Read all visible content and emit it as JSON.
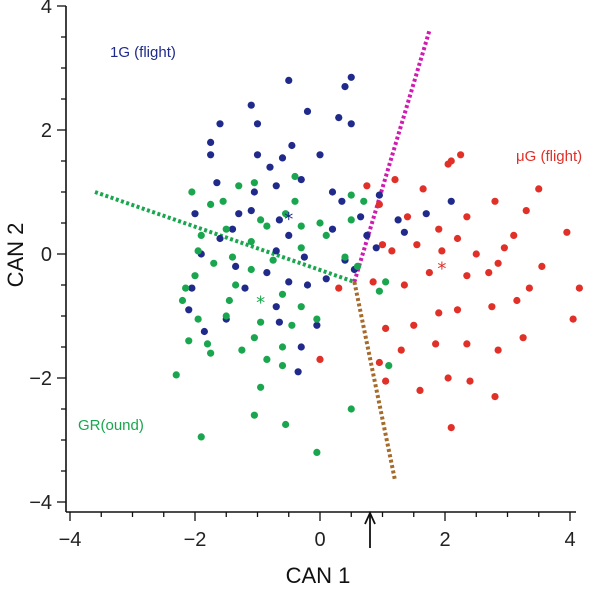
{
  "chart_data": {
    "type": "scatter",
    "xlabel": "CAN 1",
    "ylabel": "CAN 2",
    "xlim": [
      -4.2,
      4.2
    ],
    "ylim": [
      -4.0,
      4.0
    ],
    "xticks": [
      -4,
      -2,
      0,
      2,
      4
    ],
    "yticks": [
      -4,
      -2,
      0,
      2,
      4
    ],
    "xtick_labels": [
      "−4",
      "−2",
      "0",
      "2",
      "4"
    ],
    "ytick_labels": [
      "−4",
      "−2",
      "0",
      "2",
      "4"
    ],
    "grid": false,
    "series": [
      {
        "name": "1G  (flight)",
        "color": "#1f2a8a",
        "points": [
          [
            -0.5,
            2.8
          ],
          [
            0.5,
            2.85
          ],
          [
            -1.0,
            2.1
          ],
          [
            -0.2,
            2.3
          ],
          [
            0.4,
            2.7
          ],
          [
            0.5,
            2.1
          ],
          [
            -1.1,
            2.4
          ],
          [
            -1.6,
            2.1
          ],
          [
            -1.75,
            1.8
          ],
          [
            -1.75,
            1.6
          ],
          [
            -0.6,
            1.55
          ],
          [
            -0.8,
            1.4
          ],
          [
            0.0,
            1.6
          ],
          [
            -0.3,
            1.2
          ],
          [
            -1.05,
            1.0
          ],
          [
            0.35,
            0.85
          ],
          [
            -1.3,
            0.65
          ],
          [
            -1.1,
            0.7
          ],
          [
            -1.4,
            0.4
          ],
          [
            -1.6,
            0.25
          ],
          [
            -2.0,
            0.65
          ],
          [
            -0.5,
            0.3
          ],
          [
            0.2,
            0.4
          ],
          [
            -0.7,
            0.05
          ],
          [
            -1.35,
            -0.2
          ],
          [
            -0.85,
            -0.3
          ],
          [
            -0.25,
            -0.05
          ],
          [
            0.4,
            -0.1
          ],
          [
            0.65,
            0.6
          ],
          [
            0.55,
            -0.25
          ],
          [
            -1.2,
            -0.55
          ],
          [
            -2.1,
            -0.9
          ],
          [
            -0.5,
            -0.45
          ],
          [
            -0.2,
            -0.5
          ],
          [
            0.1,
            -0.4
          ],
          [
            0.75,
            0.3
          ],
          [
            -0.7,
            -0.85
          ],
          [
            -1.5,
            -1.05
          ],
          [
            -0.65,
            -1.1
          ],
          [
            -0.05,
            -1.15
          ],
          [
            -0.3,
            -1.5
          ],
          [
            -0.35,
            -1.9
          ],
          [
            -1.85,
            -1.25
          ],
          [
            -2.05,
            -0.55
          ],
          [
            0.9,
            0.1
          ],
          [
            1.25,
            0.55
          ],
          [
            1.7,
            0.65
          ],
          [
            2.1,
            0.85
          ],
          [
            0.95,
            0.95
          ],
          [
            1.35,
            0.35
          ],
          [
            -1.65,
            1.15
          ],
          [
            0.2,
            1.0
          ],
          [
            -0.65,
            0.55
          ],
          [
            -1.9,
            0.0
          ],
          [
            -1.0,
            1.6
          ],
          [
            -0.7,
            1.1
          ],
          [
            -0.45,
            1.75
          ],
          [
            0.3,
            2.2
          ]
        ],
        "centroid": [
          -0.5,
          0.6
        ]
      },
      {
        "name": "μG (flight)",
        "color": "#e03028",
        "points": [
          [
            2.1,
            1.5
          ],
          [
            2.25,
            1.6
          ],
          [
            2.05,
            1.45
          ],
          [
            1.65,
            1.05
          ],
          [
            1.2,
            1.2
          ],
          [
            1.4,
            0.6
          ],
          [
            0.75,
            1.1
          ],
          [
            0.95,
            0.8
          ],
          [
            3.5,
            1.05
          ],
          [
            3.3,
            0.7
          ],
          [
            2.8,
            0.85
          ],
          [
            2.35,
            0.6
          ],
          [
            3.1,
            0.3
          ],
          [
            2.95,
            0.1
          ],
          [
            2.5,
            0.0
          ],
          [
            2.2,
            0.25
          ],
          [
            1.9,
            0.4
          ],
          [
            1.55,
            0.15
          ],
          [
            1.15,
            0.05
          ],
          [
            1.0,
            0.15
          ],
          [
            3.95,
            0.35
          ],
          [
            3.55,
            -0.2
          ],
          [
            2.85,
            -0.15
          ],
          [
            2.7,
            -0.3
          ],
          [
            2.35,
            -0.35
          ],
          [
            1.75,
            -0.3
          ],
          [
            1.35,
            -0.5
          ],
          [
            0.85,
            -0.45
          ],
          [
            4.15,
            -0.55
          ],
          [
            4.05,
            -1.05
          ],
          [
            3.15,
            -0.75
          ],
          [
            2.75,
            -0.85
          ],
          [
            2.2,
            -0.9
          ],
          [
            1.9,
            -0.95
          ],
          [
            1.5,
            -1.15
          ],
          [
            1.05,
            -1.2
          ],
          [
            1.85,
            -1.45
          ],
          [
            1.3,
            -1.55
          ],
          [
            2.35,
            -1.45
          ],
          [
            3.25,
            -1.35
          ],
          [
            2.85,
            -1.55
          ],
          [
            0.95,
            -1.75
          ],
          [
            1.05,
            -2.05
          ],
          [
            2.05,
            -2.0
          ],
          [
            2.4,
            -2.05
          ],
          [
            1.6,
            -2.2
          ],
          [
            2.8,
            -2.3
          ],
          [
            2.1,
            -2.8
          ],
          [
            0.3,
            -0.55
          ],
          [
            0.0,
            -1.7
          ],
          [
            3.35,
            -0.55
          ],
          [
            1.95,
            0.05
          ]
        ],
        "centroid": [
          1.95,
          -0.2
        ]
      },
      {
        "name": "GR(ound)",
        "color": "#1aa64e",
        "points": [
          [
            -1.05,
            1.15
          ],
          [
            -0.4,
            1.25
          ],
          [
            -1.3,
            1.1
          ],
          [
            -2.05,
            1.0
          ],
          [
            -1.75,
            0.8
          ],
          [
            -0.4,
            0.85
          ],
          [
            -0.95,
            0.55
          ],
          [
            -0.55,
            0.65
          ],
          [
            -1.5,
            0.4
          ],
          [
            -1.9,
            0.3
          ],
          [
            -1.95,
            0.05
          ],
          [
            -1.7,
            -0.15
          ],
          [
            -0.85,
            0.45
          ],
          [
            -0.3,
            0.45
          ],
          [
            0.0,
            0.5
          ],
          [
            -1.1,
            0.2
          ],
          [
            -1.4,
            -0.05
          ],
          [
            -0.75,
            -0.1
          ],
          [
            -0.3,
            0.1
          ],
          [
            0.1,
            0.3
          ],
          [
            -1.1,
            -0.25
          ],
          [
            -1.35,
            -0.5
          ],
          [
            -2.0,
            -0.35
          ],
          [
            -2.2,
            -0.75
          ],
          [
            -1.45,
            -0.75
          ],
          [
            -0.6,
            -0.65
          ],
          [
            -0.95,
            -1.1
          ],
          [
            -1.5,
            -1.0
          ],
          [
            -1.05,
            -1.35
          ],
          [
            -1.8,
            -1.45
          ],
          [
            -1.25,
            -1.55
          ],
          [
            -0.3,
            -0.85
          ],
          [
            -0.45,
            -1.15
          ],
          [
            -0.05,
            -1.05
          ],
          [
            -0.6,
            -1.5
          ],
          [
            -1.95,
            -1.05
          ],
          [
            -2.1,
            -1.4
          ],
          [
            -1.75,
            -1.6
          ],
          [
            -2.3,
            -1.95
          ],
          [
            -0.95,
            -2.15
          ],
          [
            -1.05,
            -2.6
          ],
          [
            -0.6,
            -1.8
          ],
          [
            -1.9,
            -2.95
          ],
          [
            -0.05,
            -3.2
          ],
          [
            -0.55,
            -2.75
          ],
          [
            0.7,
            0.85
          ],
          [
            0.95,
            -0.6
          ],
          [
            0.4,
            -0.05
          ],
          [
            1.05,
            -0.45
          ],
          [
            0.6,
            -0.2
          ],
          [
            -2.15,
            -0.55
          ],
          [
            -1.55,
            0.85
          ],
          [
            0.5,
            0.95
          ],
          [
            0.5,
            0.55
          ],
          [
            -0.85,
            -1.7
          ],
          [
            0.5,
            -2.5
          ],
          [
            1.1,
            -1.8
          ]
        ],
        "centroid": [
          -0.95,
          -0.75
        ]
      }
    ],
    "boundaries": [
      {
        "name": "1G-GR",
        "color": "#1aa64e",
        "from": [
          -3.6,
          1.0
        ],
        "to": [
          0.55,
          -0.45
        ]
      },
      {
        "name": "1G-μG",
        "color": "#d01ab0",
        "from": [
          0.55,
          -0.45
        ],
        "to": [
          1.75,
          3.6
        ]
      },
      {
        "name": "GR-μG",
        "color": "#a66a2a",
        "from": [
          0.55,
          -0.45
        ],
        "to": [
          1.2,
          -3.65
        ]
      }
    ],
    "annotations": {
      "label_1g": "1G  (flight)",
      "label_ug": "μG (flight)",
      "label_gr": "GR(ound)",
      "arrow_x": 0.8,
      "color_1g": "#1f2a8a",
      "color_ug": "#e03028",
      "color_gr": "#1aa64e"
    }
  }
}
